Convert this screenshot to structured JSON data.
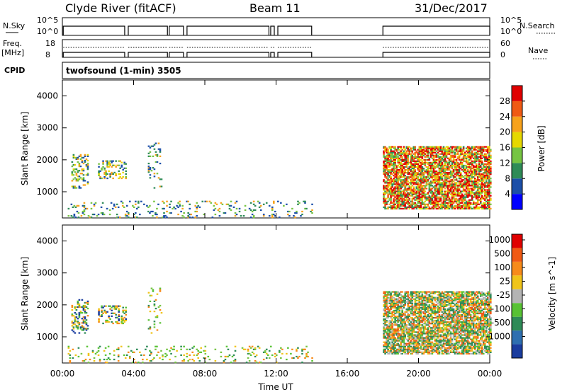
{
  "header": {
    "station": "Clyde River (fitACF)",
    "beam": "Beam 11",
    "date": "31/Dec/2017"
  },
  "panels": {
    "nsky_label": "N.Sky",
    "nsearch_label": "N.Search",
    "freq_label_1": "Freq.",
    "freq_label_2": "[MHz]",
    "nave_label": "Nave",
    "cpid_label": "CPID",
    "cpid_text": "twofsound (1-min) 3505",
    "nsky_ticks": [
      "10^5",
      "10^0"
    ],
    "nsearch_ticks": [
      "10^5",
      "10^0"
    ],
    "freq_ticks": [
      "18",
      "8"
    ],
    "nave_ticks": [
      "60",
      "0"
    ]
  },
  "chart_data": [
    {
      "type": "heatmap",
      "title": "",
      "xlabel": "Time UT",
      "ylabel": "Slant Range [km]",
      "x_ticks": [
        "00:00",
        "04:00",
        "08:00",
        "12:00",
        "16:00",
        "20:00",
        "00:00"
      ],
      "x_range_hours": [
        0,
        24
      ],
      "y_ticks": [
        1000,
        2000,
        3000,
        4000
      ],
      "y_range_km": [
        180,
        4500
      ],
      "colorbar": {
        "label": "Power [dB]",
        "ticks": [
          4,
          8,
          12,
          16,
          20,
          24,
          28
        ],
        "range": [
          0,
          32
        ],
        "colors": [
          "#0000ff",
          "#1c4fa8",
          "#2e8b57",
          "#76c442",
          "#e6d800",
          "#f7a21b",
          "#f05a14",
          "#e00000"
        ]
      },
      "scatter_regions": [
        {
          "t0": 0.5,
          "t1": 1.4,
          "r0": 1100,
          "r1": 2150,
          "level": "mid"
        },
        {
          "t0": 2.0,
          "t1": 3.6,
          "r0": 1400,
          "r1": 1950,
          "level": "mid"
        },
        {
          "t0": 4.8,
          "t1": 5.6,
          "r0": 1100,
          "r1": 2500,
          "level": "low"
        },
        {
          "t0": 0.3,
          "t1": 14.0,
          "r0": 180,
          "r1": 700,
          "level": "low"
        },
        {
          "t0": 18.0,
          "t1": 24.0,
          "r0": 450,
          "r1": 2400,
          "level": "high"
        }
      ]
    },
    {
      "type": "heatmap",
      "title": "",
      "xlabel": "Time UT",
      "ylabel": "Slant Range [km]",
      "x_ticks": [
        "00:00",
        "04:00",
        "08:00",
        "12:00",
        "16:00",
        "20:00",
        "00:00"
      ],
      "x_range_hours": [
        0,
        24
      ],
      "y_ticks": [
        1000,
        2000,
        3000,
        4000
      ],
      "y_range_km": [
        180,
        4500
      ],
      "colorbar": {
        "label": "Velocity [m s^-1]",
        "ticks": [
          "1000",
          "500",
          "100",
          "25",
          "-25",
          "-100",
          "-500",
          "-1000"
        ],
        "colors": [
          "#1a3c9e",
          "#2e6fb0",
          "#2e8b57",
          "#58c234",
          "#b4b4b4",
          "#f0c419",
          "#f78b1a",
          "#f05a14",
          "#e00000"
        ]
      },
      "scatter_regions": [
        {
          "t0": 0.5,
          "t1": 1.4,
          "r0": 1100,
          "r1": 2150,
          "level": "mid"
        },
        {
          "t0": 2.0,
          "t1": 3.6,
          "r0": 1400,
          "r1": 1950,
          "level": "mid"
        },
        {
          "t0": 4.8,
          "t1": 5.6,
          "r0": 1100,
          "r1": 2500,
          "level": "low"
        },
        {
          "t0": 0.3,
          "t1": 14.0,
          "r0": 180,
          "r1": 700,
          "level": "low"
        },
        {
          "t0": 18.0,
          "t1": 24.0,
          "r0": 450,
          "r1": 2400,
          "level": "high"
        }
      ]
    }
  ]
}
